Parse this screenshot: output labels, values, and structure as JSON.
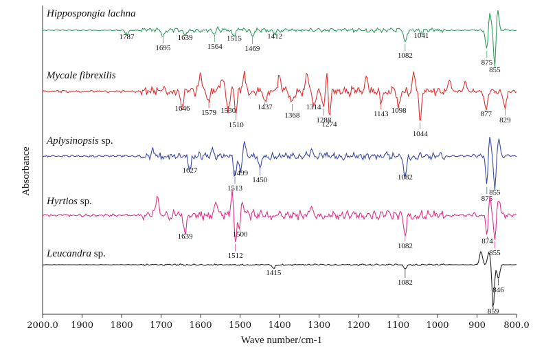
{
  "chart_data": {
    "type": "line",
    "title": "",
    "xlabel": "Wave number/cm-1",
    "ylabel": "Absorbance",
    "xlim": [
      2000,
      800
    ],
    "x_reversed": true,
    "x_ticks": [
      "2000.0",
      "1900",
      "1800",
      "1700",
      "1600",
      "1500",
      "1400",
      "1300",
      "1200",
      "1100",
      "1000",
      "900",
      "800.0"
    ],
    "series": [
      {
        "name": "Hippospongia lachna",
        "name_italic": "Hippospongia lachna",
        "name_suffix": "",
        "color": "#2e9e5b",
        "annotations": [
          {
            "wn": 1787,
            "label": "1787"
          },
          {
            "wn": 1695,
            "label": "1695"
          },
          {
            "wn": 1639,
            "label": "1639"
          },
          {
            "wn": 1564,
            "label": "1564"
          },
          {
            "wn": 1515,
            "label": "1515"
          },
          {
            "wn": 1469,
            "label": "1469"
          },
          {
            "wn": 1412,
            "label": "1412"
          },
          {
            "wn": 1082,
            "label": "1082"
          },
          {
            "wn": 1041,
            "label": "1041"
          },
          {
            "wn": 875,
            "label": "875"
          },
          {
            "wn": 855,
            "label": "855"
          }
        ]
      },
      {
        "name": "Mycale fibrexilis",
        "name_italic": "Mycale fibrexilis",
        "name_suffix": "",
        "color": "#e03030",
        "annotations": [
          {
            "wn": 1646,
            "label": "1646"
          },
          {
            "wn": 1579,
            "label": "1579"
          },
          {
            "wn": 1530,
            "label": "1530"
          },
          {
            "wn": 1510,
            "label": "1510"
          },
          {
            "wn": 1437,
            "label": "1437"
          },
          {
            "wn": 1368,
            "label": "1368"
          },
          {
            "wn": 1314,
            "label": "1314"
          },
          {
            "wn": 1288,
            "label": "1288"
          },
          {
            "wn": 1274,
            "label": "1274"
          },
          {
            "wn": 1143,
            "label": "1143"
          },
          {
            "wn": 1098,
            "label": "1098"
          },
          {
            "wn": 1044,
            "label": "1044"
          },
          {
            "wn": 877,
            "label": "877"
          },
          {
            "wn": 829,
            "label": "829"
          }
        ]
      },
      {
        "name": "Aplysinopsis sp.",
        "name_italic": "Aplysinopsis",
        "name_suffix": " sp.",
        "color": "#3a4aa8",
        "annotations": [
          {
            "wn": 1627,
            "label": "1627"
          },
          {
            "wn": 1513,
            "label": "1513"
          },
          {
            "wn": 1499,
            "label": "1499"
          },
          {
            "wn": 1450,
            "label": "1450"
          },
          {
            "wn": 1082,
            "label": "1082"
          },
          {
            "wn": 875,
            "label": "875"
          },
          {
            "wn": 855,
            "label": "855"
          }
        ]
      },
      {
        "name": "Hyrtios sp.",
        "name_italic": "Hyrtios",
        "name_suffix": " sp.",
        "color": "#e0308a",
        "annotations": [
          {
            "wn": 1639,
            "label": "1639"
          },
          {
            "wn": 1512,
            "label": "1512"
          },
          {
            "wn": 1500,
            "label": "1500"
          },
          {
            "wn": 1082,
            "label": "1082"
          },
          {
            "wn": 874,
            "label": "874"
          },
          {
            "wn": 855,
            "label": "855"
          }
        ]
      },
      {
        "name": "Leucandra sp.",
        "name_italic": "Leucandra",
        "name_suffix": " sp.",
        "color": "#222222",
        "annotations": [
          {
            "wn": 1415,
            "label": "1415"
          },
          {
            "wn": 1082,
            "label": "1082"
          },
          {
            "wn": 859,
            "label": "859"
          },
          {
            "wn": 846,
            "label": "846"
          }
        ]
      }
    ]
  }
}
